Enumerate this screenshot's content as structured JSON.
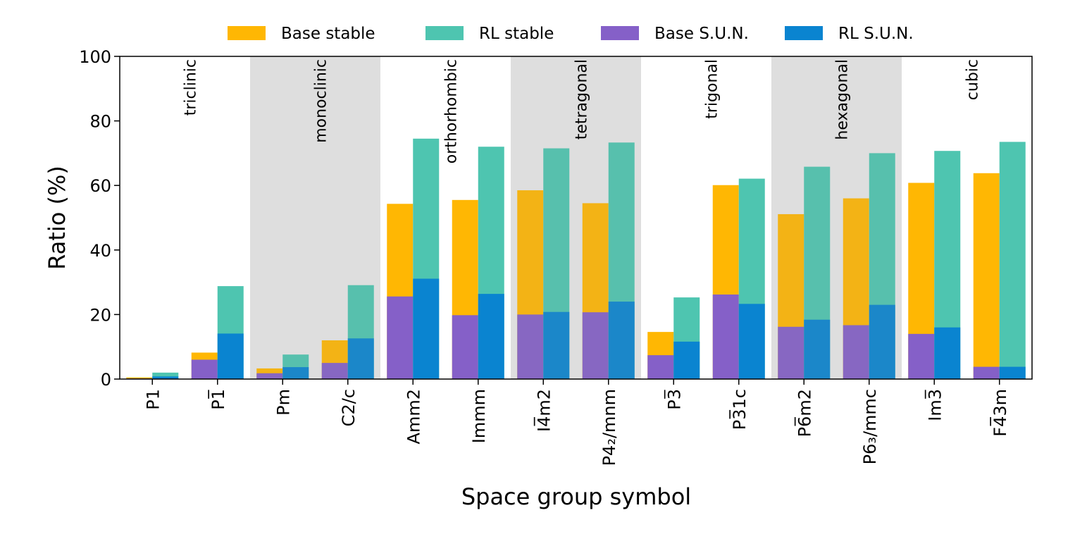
{
  "chart_data": {
    "type": "bar",
    "title": "",
    "xlabel": "Space group symbol",
    "ylabel": "Ratio (%)",
    "ylim": [
      0,
      100
    ],
    "yticks": [
      "0",
      "20",
      "40",
      "60",
      "80",
      "100"
    ],
    "legend_position": "top",
    "categories": [
      "P1",
      "P1̅",
      "Pm",
      "C2/c",
      "Amm2",
      "Immm",
      "I4̅m2",
      "P4₂/mnm",
      "P3̅",
      "P3̅1c",
      "P6̅m2",
      "P6₃/mmc",
      "Im3̅",
      "F4̅3m"
    ],
    "crystal_systems": [
      "triclinic",
      "monoclinic",
      "orthorhombic",
      "tetragonal",
      "trigonal",
      "hexagonal",
      "cubic"
    ],
    "shaded_systems": [
      false,
      true,
      false,
      true,
      false,
      true,
      false
    ],
    "series": [
      {
        "name": "Base stable",
        "color": "#FFB703",
        "values": [
          0.5,
          8.2,
          3.3,
          12.0,
          54.3,
          55.5,
          58.5,
          54.5,
          14.6,
          60.1,
          51.1,
          56.0,
          60.8,
          63.8
        ]
      },
      {
        "name": "RL stable",
        "color": "#4EC5B0",
        "values": [
          2.0,
          28.8,
          7.6,
          29.1,
          74.5,
          72.0,
          71.5,
          73.3,
          25.3,
          62.1,
          65.8,
          70.0,
          70.7,
          73.5
        ]
      },
      {
        "name": "Base S.U.N.",
        "color": "#8560C8",
        "values": [
          0.2,
          6.0,
          1.8,
          5.0,
          25.6,
          19.8,
          20.0,
          20.7,
          7.4,
          26.2,
          16.2,
          16.7,
          14.0,
          3.8
        ]
      },
      {
        "name": "RL S.U.N.",
        "color": "#0A84D0",
        "values": [
          0.8,
          14.1,
          3.7,
          12.6,
          31.1,
          26.4,
          20.8,
          24.0,
          11.6,
          23.3,
          18.4,
          23.0,
          16.0,
          3.8
        ]
      }
    ]
  }
}
